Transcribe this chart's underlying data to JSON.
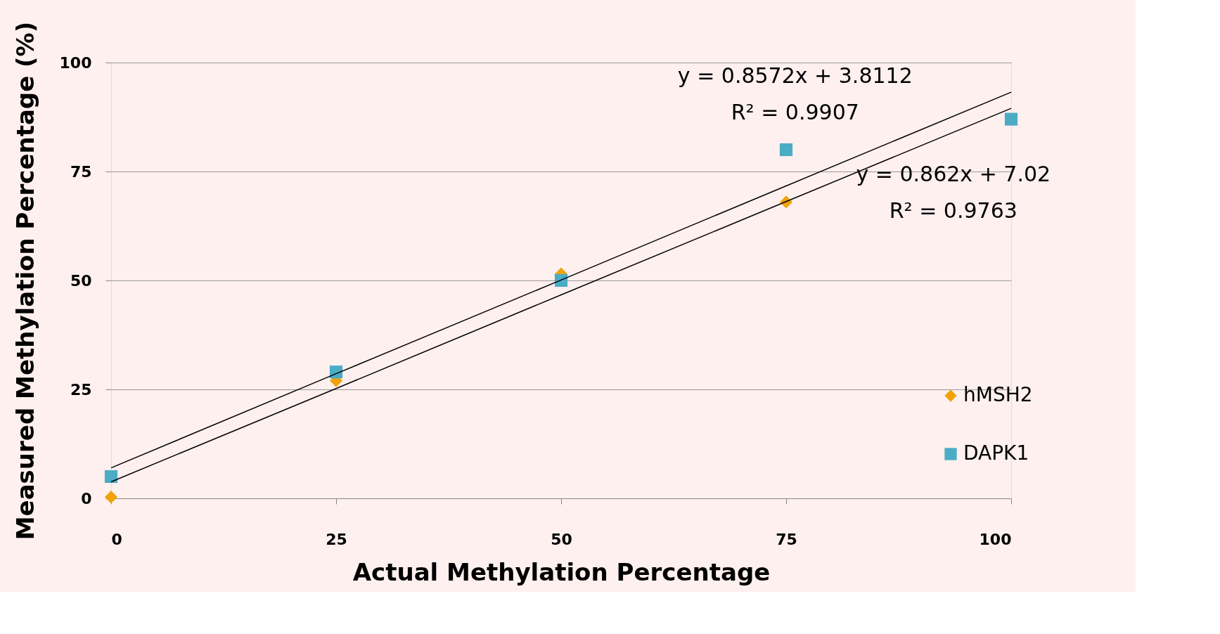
{
  "chart_data": {
    "type": "scatter",
    "xlabel": "Actual Methylation Percentage",
    "ylabel": "Measured Methylation Percentage (%)",
    "x": [
      0,
      25,
      50,
      75,
      100
    ],
    "series": [
      {
        "name": "hMSH2",
        "color": "#f0a30a",
        "marker": "diamond",
        "values": [
          0.3,
          27,
          51.5,
          68,
          null
        ]
      },
      {
        "name": "DAPK1",
        "color": "#4bacc6",
        "marker": "square",
        "values": [
          5,
          29,
          50,
          80,
          87
        ]
      },
      {
        "type": "line",
        "color": "#000000",
        "values": [
          3.8,
          25.2,
          46.7,
          68.1,
          89.5
        ],
        "line_style": "solid"
      },
      {
        "type": "line",
        "color": "#000000",
        "values": [
          7,
          28.6,
          50.1,
          71.7,
          93.2
        ],
        "line_style": "solid"
      }
    ],
    "annotations": [
      "y = 0.8572x + 3.8112",
      "R² = 0.9907",
      "y = 0.862x + 7.02",
      "R² = 0.9763"
    ],
    "xlim": [
      0,
      100
    ],
    "ylim": [
      0,
      100
    ],
    "xticks": [
      0,
      25,
      50,
      75,
      100
    ],
    "yticks": [
      0,
      25,
      50,
      75,
      100
    ],
    "grid": "y",
    "legend": "bottom right"
  }
}
